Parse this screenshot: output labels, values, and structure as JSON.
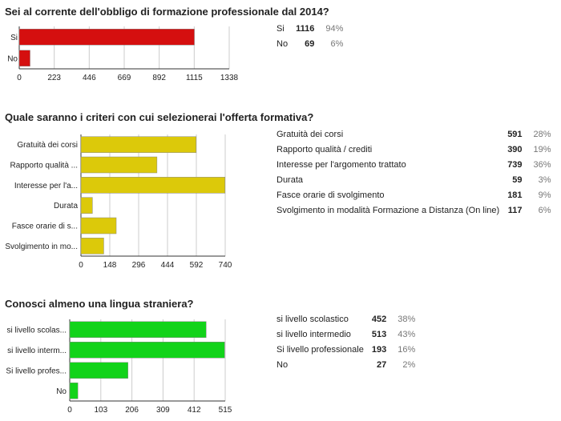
{
  "chart_data": [
    {
      "type": "bar",
      "orientation": "horizontal",
      "title": "Sei al corrente dell'obbligo di formazione professionale dal 2014?",
      "categories": [
        "Si",
        "No"
      ],
      "values": [
        1116,
        69
      ],
      "xticks": [
        0,
        223,
        446,
        669,
        892,
        1115,
        1338
      ],
      "xlim": [
        0,
        1338
      ],
      "color": "#d50f0f",
      "summary": [
        {
          "label": "Si",
          "count": "1116",
          "percent": "94%"
        },
        {
          "label": "No",
          "count": "69",
          "percent": "6%"
        }
      ]
    },
    {
      "type": "bar",
      "orientation": "horizontal",
      "title": "Quale saranno i criteri con cui selezionerai l'offerta formativa?",
      "categories": [
        "Gratuità dei corsi",
        "Rapporto qualità ...",
        "Interesse per l'a...",
        "Durata",
        "Fasce orarie di s...",
        "Svolgimento in mo..."
      ],
      "values": [
        591,
        390,
        739,
        59,
        181,
        117
      ],
      "xticks": [
        0,
        148,
        296,
        444,
        592,
        740
      ],
      "xlim": [
        0,
        740
      ],
      "color": "#dcc90a",
      "summary": [
        {
          "label": "Gratuità dei corsi",
          "count": "591",
          "percent": "28%"
        },
        {
          "label": "Rapporto qualità / crediti",
          "count": "390",
          "percent": "19%"
        },
        {
          "label": "Interesse per l'argomento trattato",
          "count": "739",
          "percent": "36%"
        },
        {
          "label": "Durata",
          "count": "59",
          "percent": "3%"
        },
        {
          "label": "Fasce orarie di svolgimento",
          "count": "181",
          "percent": "9%"
        },
        {
          "label": "Svolgimento in modalità Formazione a Distanza (On line)",
          "count": "117",
          "percent": "6%"
        }
      ]
    },
    {
      "type": "bar",
      "orientation": "horizontal",
      "title": "Conosci almeno una lingua straniera?",
      "categories": [
        "si livello scolas...",
        "si livello interm...",
        "Si livello profes...",
        "No"
      ],
      "values": [
        452,
        513,
        193,
        27
      ],
      "xticks": [
        0,
        103,
        206,
        309,
        412,
        515
      ],
      "xlim": [
        0,
        515
      ],
      "color": "#12d31a",
      "summary": [
        {
          "label": "si livello scolastico",
          "count": "452",
          "percent": "38%"
        },
        {
          "label": "si livello intermedio",
          "count": "513",
          "percent": "43%"
        },
        {
          "label": "Si livello professionale",
          "count": "193",
          "percent": "16%"
        },
        {
          "label": "No",
          "count": "27",
          "percent": "2%"
        }
      ]
    }
  ]
}
